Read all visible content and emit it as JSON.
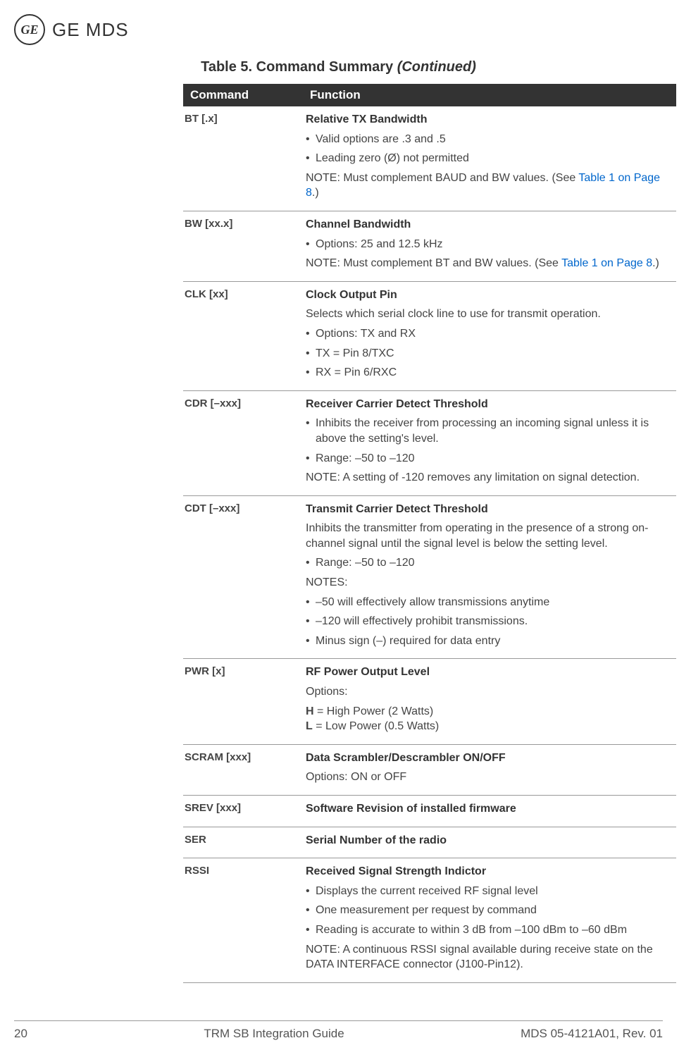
{
  "logo": {
    "monogram": "GE",
    "brand": "GE MDS"
  },
  "table": {
    "title_prefix": "Table 5. Command Summary ",
    "title_suffix": "(Continued)",
    "headers": {
      "command": "Command",
      "function": "Function"
    },
    "rows": [
      {
        "command": "BT [.x]",
        "title": "Relative TX Bandwidth",
        "lines": [
          {
            "type": "bullet",
            "text": "Valid options are .3 and .5"
          },
          {
            "type": "bullet",
            "text": "Leading zero (Ø) not permitted"
          },
          {
            "type": "note",
            "parts": [
              "NOTE: Must complement BAUD and BW values. (See ",
              "Table 1 on Page 8",
              ".)"
            ]
          }
        ]
      },
      {
        "command": "BW [xx.x]",
        "title": "Channel Bandwidth",
        "lines": [
          {
            "type": "bullet",
            "text": "Options: 25 and 12.5 kHz"
          },
          {
            "type": "note",
            "parts": [
              "NOTE: Must complement BT and BW values. (See ",
              "Table 1 on Page 8",
              ".)"
            ]
          }
        ]
      },
      {
        "command": "CLK [xx]",
        "title": "Clock Output Pin",
        "lines": [
          {
            "type": "plain",
            "text": "Selects which serial clock line to use for transmit operation."
          },
          {
            "type": "bullet",
            "text": "Options: TX and RX"
          },
          {
            "type": "bullet",
            "text": "TX = Pin 8/TXC"
          },
          {
            "type": "bullet",
            "text": "RX = Pin 6/RXC"
          }
        ]
      },
      {
        "command": "CDR [–xxx]",
        "title": "Receiver Carrier Detect Threshold",
        "lines": [
          {
            "type": "bullet",
            "text": "Inhibits the receiver from processing an incoming signal unless it is above the setting's level."
          },
          {
            "type": "bullet",
            "text": "Range: –50 to –120"
          },
          {
            "type": "plain",
            "text": "NOTE: A setting of -120 removes any limitation on signal detection."
          }
        ]
      },
      {
        "command": "CDT [–xxx]",
        "title": "Transmit Carrier Detect Threshold",
        "lines": [
          {
            "type": "plain",
            "text": "Inhibits the transmitter from operating in the presence of a strong on-channel signal until the signal level is below the setting level."
          },
          {
            "type": "bullet",
            "text": "Range: –50 to –120"
          },
          {
            "type": "plain",
            "text": "NOTES:"
          },
          {
            "type": "bullet",
            "text": "–50 will effectively allow transmissions anytime"
          },
          {
            "type": "bullet",
            "text": "–120 will effectively prohibit transmissions."
          },
          {
            "type": "bullet",
            "text": "Minus sign (–) required for data entry"
          }
        ]
      },
      {
        "command": "PWR [x]",
        "title": "RF Power Output Level",
        "lines": [
          {
            "type": "plain",
            "text": "Options:"
          },
          {
            "type": "boldpair",
            "bold1": "H",
            "rest1": " = High Power (2 Watts)",
            "bold2": "L",
            "rest2": " = Low Power (0.5 Watts)"
          }
        ]
      },
      {
        "command": "SCRAM [xxx]",
        "title": "Data Scrambler/Descrambler ON/OFF",
        "lines": [
          {
            "type": "plain",
            "text": "Options: ON or OFF"
          }
        ]
      },
      {
        "command": "SREV [xxx]",
        "title": "Software Revision of installed firmware",
        "lines": []
      },
      {
        "command": "SER",
        "title": "Serial Number of the radio",
        "lines": []
      },
      {
        "command": "RSSI",
        "title": "Received Signal Strength Indictor",
        "lines": [
          {
            "type": "bullet",
            "text": "Displays the current received RF signal level"
          },
          {
            "type": "bullet",
            "text": "One measurement per request by command"
          },
          {
            "type": "bullet",
            "text": "Reading is accurate to within 3 dB from –100 dBm to –60 dBm"
          },
          {
            "type": "plain",
            "text": "NOTE: A continuous RSSI signal available during receive state on the DATA INTERFACE connector (J100-Pin12)."
          }
        ]
      }
    ]
  },
  "footer": {
    "page": "20",
    "doc_title": "TRM SB Integration Guide",
    "doc_id": "MDS 05-4121A01, Rev. 01"
  },
  "colors": {
    "header_bg": "#333333",
    "header_fg": "#ffffff",
    "text": "#444444",
    "link": "#0066cc",
    "border": "#999999"
  }
}
